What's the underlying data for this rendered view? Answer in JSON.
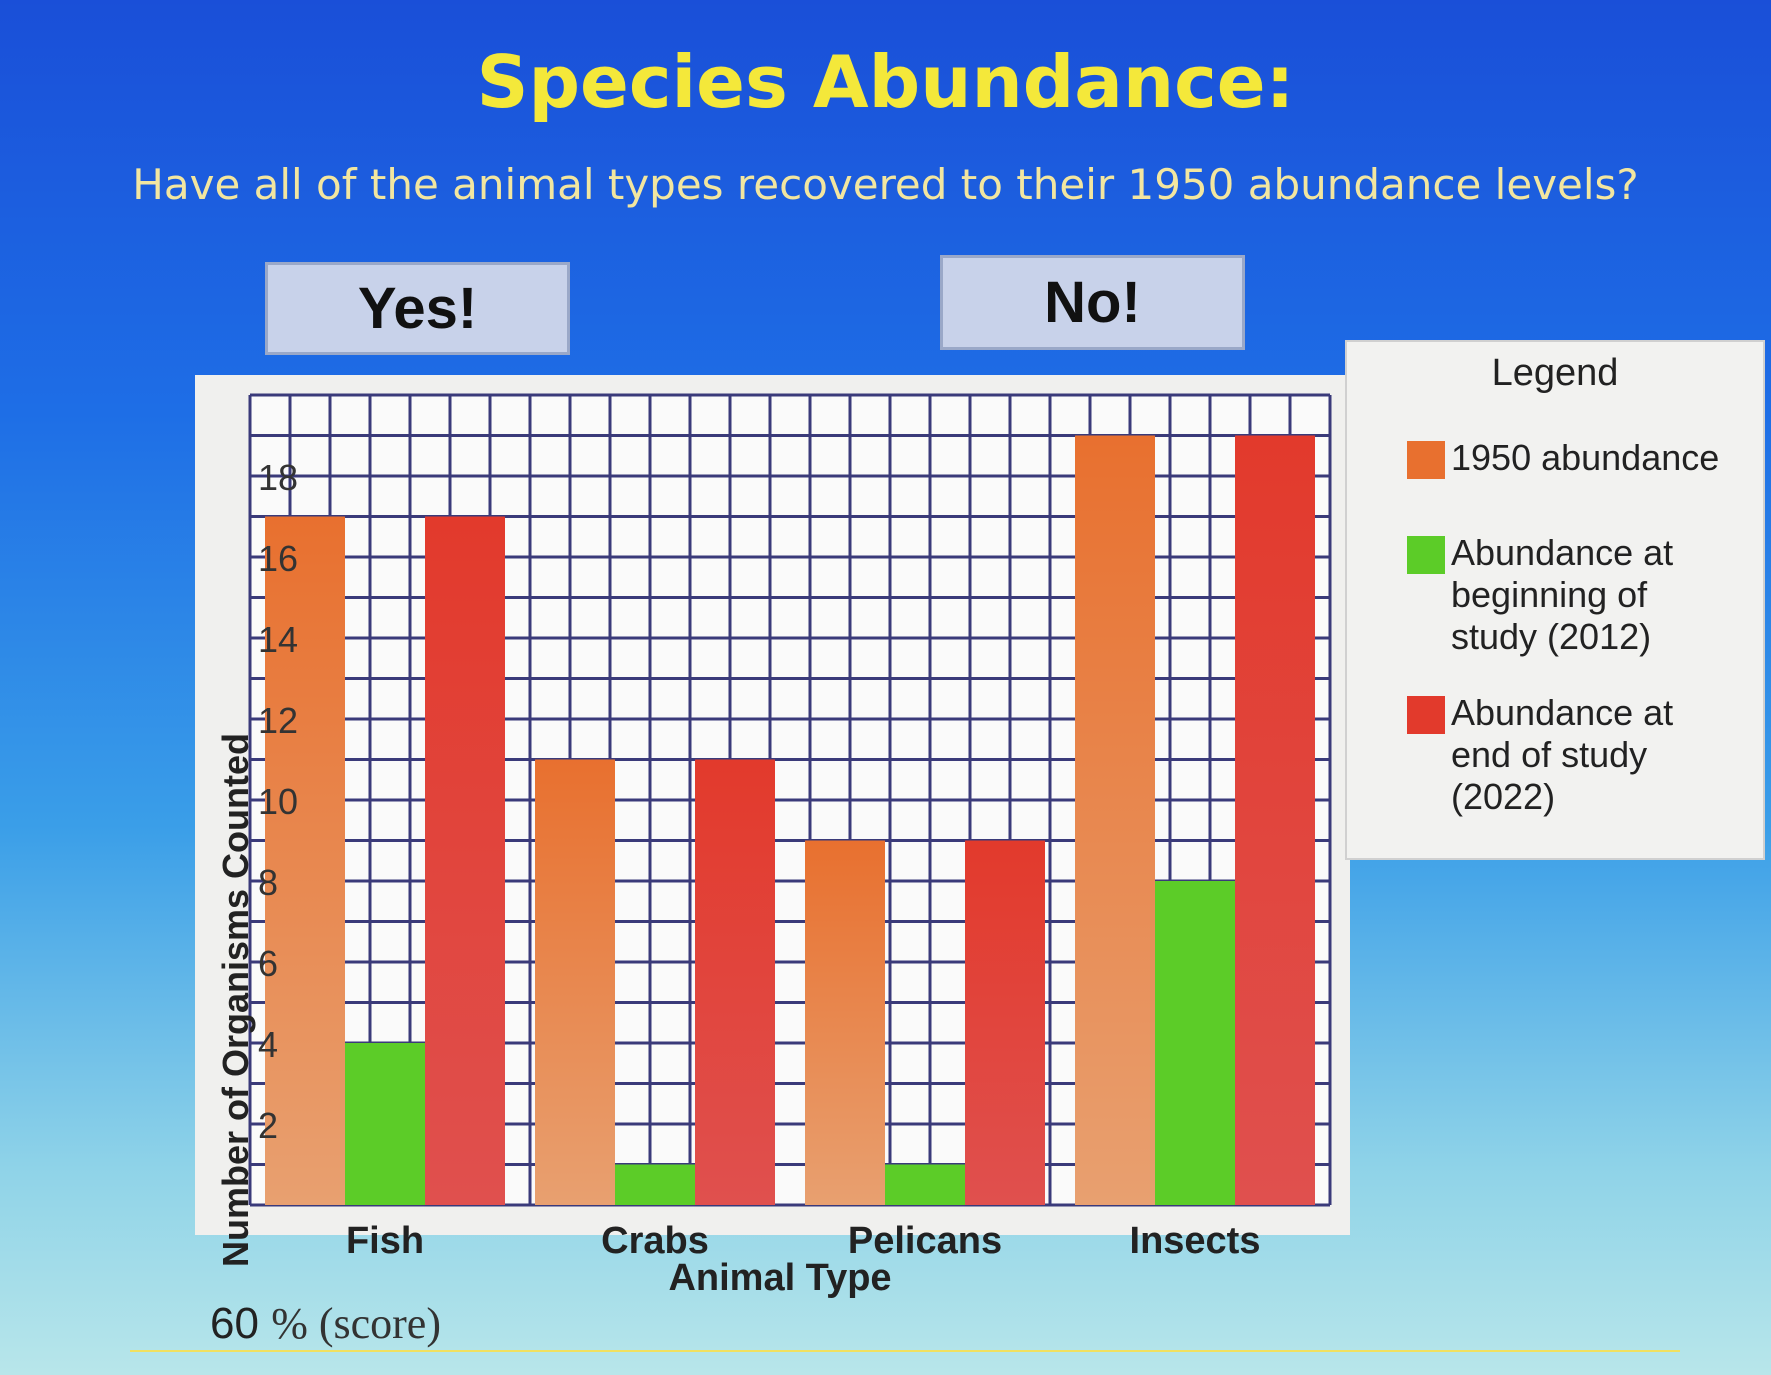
{
  "title": "Species Abundance:",
  "question": "Have all of the animal types recovered to their 1950 abundance levels?",
  "buttons": {
    "yes": "Yes!",
    "no": "No!"
  },
  "legend": {
    "title": "Legend",
    "items": [
      "1950 abundance",
      "Abundance at beginning of study (2012)",
      "Abundance at end of study (2022)"
    ]
  },
  "score": {
    "value": "60",
    "unit": "% (score)"
  },
  "chart_data": {
    "type": "bar",
    "categories": [
      "Fish",
      "Crabs",
      "Pelicans",
      "Insects"
    ],
    "series": [
      {
        "name": "1950 abundance",
        "values": [
          17,
          11,
          9,
          19
        ],
        "color": "#e8702f"
      },
      {
        "name": "Abundance at beginning of study (2012)",
        "values": [
          4,
          1,
          1,
          8
        ],
        "color": "#5ccc28"
      },
      {
        "name": "Abundance at end of study (2022)",
        "values": [
          17,
          11,
          9,
          19
        ],
        "color": "#e23a2c"
      }
    ],
    "xlabel": "Animal Type",
    "ylabel": "Number of Organisms Counted",
    "yticks": [
      2,
      4,
      6,
      8,
      10,
      12,
      14,
      16,
      18
    ],
    "ylim": [
      0,
      20
    ],
    "grid": true,
    "legend_position": "right"
  }
}
